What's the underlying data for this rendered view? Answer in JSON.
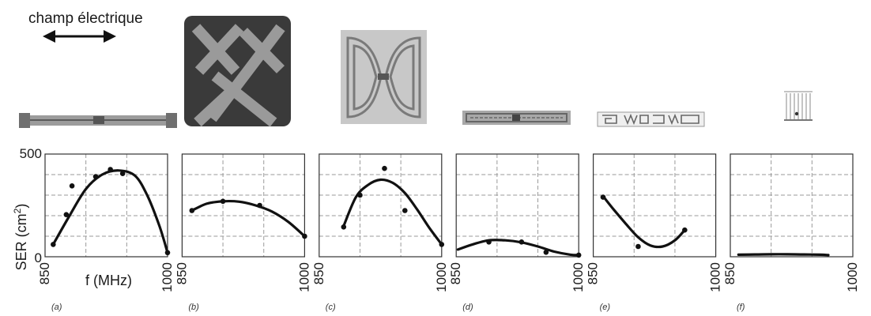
{
  "header": {
    "field_label": "champ électrique"
  },
  "shared_axis": {
    "ylabel": "SER (cm",
    "ylabel_sup": "2",
    "ylabel_close": ")",
    "xlabel": "f (MHz)",
    "y_ticks": [
      "500",
      "0"
    ],
    "x_ticks": [
      "850",
      "1000"
    ]
  },
  "colors": {
    "curve": "#111111",
    "grid": "#9a9a9a",
    "frame": "#333333"
  },
  "chart_data": [
    {
      "type": "line",
      "caption": "(a)",
      "xlim": [
        850,
        1000
      ],
      "ylim": [
        0,
        500
      ],
      "series": [
        {
          "x": [
            860,
            880,
            900,
            920,
            940,
            960,
            975,
            990,
            1000
          ],
          "y": [
            60,
            200,
            330,
            400,
            420,
            395,
            300,
            150,
            20
          ]
        }
      ],
      "points": {
        "x": [
          860,
          876,
          883,
          912,
          930,
          945,
          1000
        ],
        "y": [
          60,
          205,
          345,
          390,
          425,
          405,
          20
        ]
      }
    },
    {
      "type": "line",
      "caption": "(b)",
      "xlim": [
        850,
        1000
      ],
      "ylim": [
        0,
        500
      ],
      "series": [
        {
          "x": [
            862,
            880,
            900,
            920,
            940,
            960,
            980,
            1000
          ],
          "y": [
            225,
            258,
            270,
            268,
            250,
            220,
            170,
            100
          ]
        }
      ],
      "points": {
        "x": [
          862,
          900,
          945,
          1000
        ],
        "y": [
          225,
          270,
          250,
          100
        ]
      }
    },
    {
      "type": "line",
      "caption": "(c)",
      "xlim": [
        850,
        1000
      ],
      "ylim": [
        0,
        500
      ],
      "series": [
        {
          "x": [
            880,
            895,
            910,
            925,
            940,
            955,
            970,
            985,
            1000
          ],
          "y": [
            150,
            290,
            350,
            375,
            360,
            310,
            230,
            140,
            60
          ]
        }
      ],
      "points": {
        "x": [
          880,
          900,
          930,
          955,
          1000
        ],
        "y": [
          145,
          300,
          430,
          225,
          60
        ]
      }
    },
    {
      "type": "line",
      "caption": "(d)",
      "xlim": [
        850,
        1000
      ],
      "ylim": [
        0,
        500
      ],
      "series": [
        {
          "x": [
            852,
            870,
            890,
            910,
            930,
            950,
            970,
            990,
            1000
          ],
          "y": [
            35,
            60,
            80,
            80,
            70,
            50,
            25,
            10,
            8
          ]
        }
      ],
      "points": {
        "x": [
          890,
          930,
          960,
          1000
        ],
        "y": [
          72,
          72,
          22,
          8
        ]
      }
    },
    {
      "type": "line",
      "caption": "(e)",
      "xlim": [
        850,
        1000
      ],
      "ylim": [
        0,
        500
      ],
      "series": [
        {
          "x": [
            862,
            875,
            890,
            905,
            920,
            935,
            950,
            962
          ],
          "y": [
            295,
            230,
            160,
            95,
            55,
            50,
            80,
            130
          ]
        }
      ],
      "points": {
        "x": [
          862,
          905,
          962
        ],
        "y": [
          290,
          50,
          130
        ]
      }
    },
    {
      "type": "line",
      "caption": "(f)",
      "xlim": [
        850,
        1000
      ],
      "ylim": [
        0,
        500
      ],
      "series": [
        {
          "x": [
            860,
            880,
            900,
            920,
            940,
            960,
            970
          ],
          "y": [
            10,
            11,
            12,
            12,
            11,
            10,
            8
          ]
        }
      ],
      "points": {
        "x": [],
        "y": []
      }
    }
  ]
}
